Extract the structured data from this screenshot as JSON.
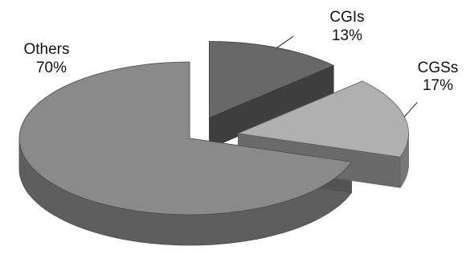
{
  "chart_data": {
    "type": "pie",
    "style": "3d-exploded",
    "title": "",
    "slices": [
      {
        "name": "CGIs",
        "value": 13,
        "label": "CGIs",
        "percent_label": "13%",
        "color": "#686868",
        "exploded": true
      },
      {
        "name": "CGSs",
        "value": 17,
        "label": "CGSs",
        "percent_label": "17%",
        "color": "#b0b0b0",
        "exploded": true
      },
      {
        "name": "Others",
        "value": 70,
        "label": "Others",
        "percent_label": "70%",
        "color": "#8a8a8a",
        "exploded": false
      }
    ],
    "legend": "none"
  }
}
